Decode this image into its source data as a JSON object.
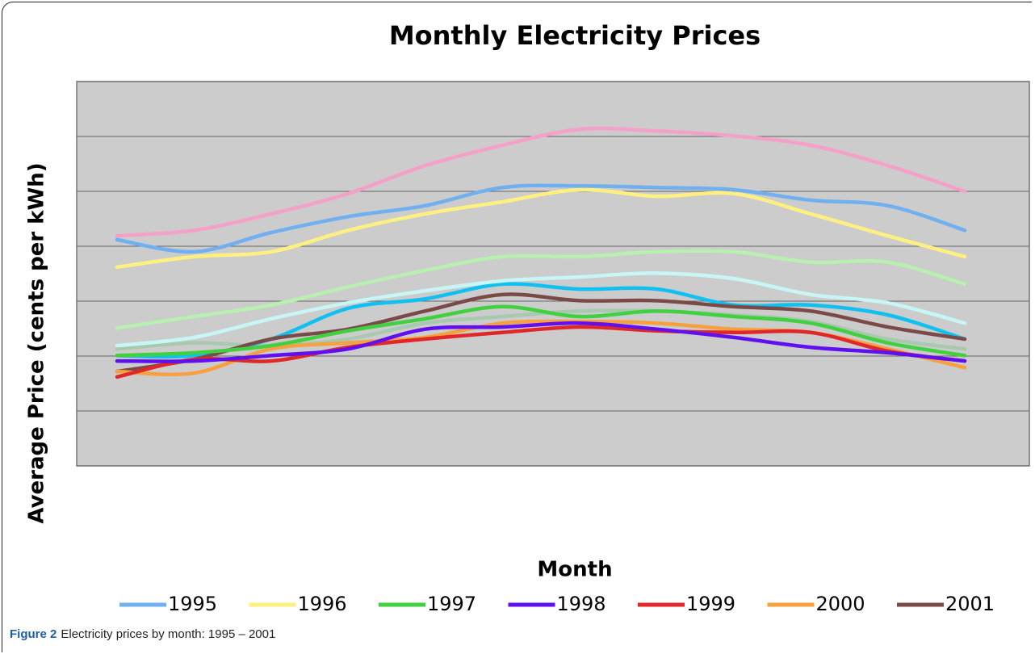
{
  "chart_data": {
    "type": "line",
    "title": "Monthly Electricity Prices",
    "xlabel": "Month",
    "ylabel": "Average Price (cents per kWh)",
    "categories": [
      null,
      null,
      null,
      null,
      null,
      null,
      null,
      null,
      null,
      null,
      null,
      null
    ],
    "ylim": [
      0,
      7
    ],
    "yticks": [
      0,
      1,
      2,
      3,
      4,
      5,
      6,
      7
    ],
    "grid": true,
    "series": [
      {
        "name": "1995",
        "color": "#70b0f0",
        "values": [
          4.12,
          3.9,
          4.25,
          4.54,
          4.74,
          5.07,
          5.1,
          5.07,
          5.03,
          4.84,
          4.74,
          4.29
        ]
      },
      {
        "name": "1996",
        "color": "#fff080",
        "values": [
          3.62,
          3.81,
          3.9,
          4.29,
          4.59,
          4.81,
          5.03,
          4.91,
          4.96,
          4.59,
          4.19,
          3.81
        ]
      },
      {
        "name": "1997",
        "color": "#40d040",
        "values": [
          2.01,
          2.06,
          2.19,
          2.46,
          2.68,
          2.9,
          2.72,
          2.82,
          2.72,
          2.6,
          2.24,
          2.01
        ]
      },
      {
        "name": "1998",
        "color": "#6010f0",
        "values": [
          1.91,
          1.91,
          2.01,
          2.13,
          2.49,
          2.53,
          2.6,
          2.49,
          2.34,
          2.16,
          2.06,
          1.91
        ]
      },
      {
        "name": "1999",
        "color": "#e02828",
        "values": [
          1.62,
          1.94,
          1.91,
          2.16,
          2.31,
          2.43,
          2.53,
          2.46,
          2.43,
          2.43,
          2.09,
          1.91
        ]
      },
      {
        "name": "2000",
        "color": "#f8a040",
        "values": [
          1.72,
          1.69,
          2.13,
          2.24,
          2.34,
          2.6,
          2.63,
          2.6,
          2.49,
          2.43,
          2.13,
          1.79
        ]
      },
      {
        "name": "2001",
        "color": "#7a4a48",
        "values": [
          1.72,
          1.94,
          2.31,
          2.49,
          2.82,
          3.12,
          3.01,
          3.01,
          2.9,
          2.82,
          2.53,
          2.31
        ]
      },
      {
        "color": "#f5a0c8",
        "values": [
          4.19,
          4.29,
          4.59,
          4.96,
          5.47,
          5.84,
          6.13,
          6.1,
          6.01,
          5.84,
          5.47,
          5.0
        ]
      },
      {
        "color": "#b8f0b0",
        "values": [
          2.51,
          2.72,
          2.93,
          3.26,
          3.56,
          3.81,
          3.81,
          3.9,
          3.9,
          3.71,
          3.71,
          3.31
        ]
      },
      {
        "color": "#c8f6f6",
        "values": [
          2.19,
          2.34,
          2.68,
          2.97,
          3.19,
          3.37,
          3.44,
          3.51,
          3.41,
          3.12,
          2.97,
          2.6
        ]
      },
      {
        "color": "#10c0f0",
        "values": [
          2.01,
          2.01,
          2.31,
          2.87,
          3.04,
          3.31,
          3.22,
          3.22,
          2.93,
          2.93,
          2.75,
          2.31
        ]
      },
      {
        "color": "#a8c8b0",
        "values": [
          2.13,
          2.24,
          2.19,
          2.31,
          2.6,
          2.72,
          2.82,
          2.82,
          2.75,
          2.63,
          2.31,
          2.13
        ]
      }
    ]
  },
  "caption": {
    "label": "Figure 2",
    "text": "Electricity prices by month: 1995 – 2001"
  }
}
